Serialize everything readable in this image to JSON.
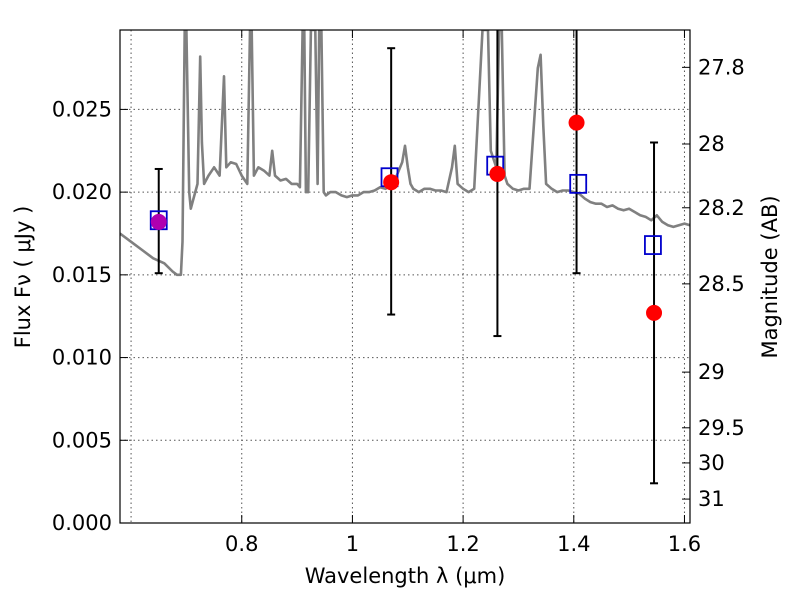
{
  "chart_data": {
    "type": "scatter",
    "title": "",
    "xlabel": "Wavelength  λ (μm)",
    "ylabel": "Flux  Fν  ( μJy )",
    "y2label": "Magnitude (AB)",
    "xlim": [
      0.58,
      1.61
    ],
    "ylim": [
      0.0,
      0.0298
    ],
    "grid": true,
    "x_ticks": [
      0.8,
      1.0,
      1.2,
      1.4,
      1.6
    ],
    "x_tick_labels": [
      "0.8",
      "1",
      "1.2",
      "1.4",
      "1.6"
    ],
    "y_ticks": [
      0.0,
      0.005,
      0.01,
      0.015,
      0.02,
      0.025
    ],
    "y_tick_labels": [
      "0.000",
      "0.005",
      "0.010",
      "0.015",
      "0.020",
      "0.025"
    ],
    "mag_ticks": [
      27.8,
      28,
      28.2,
      28.5,
      29,
      29.5,
      30,
      31
    ],
    "mag_tick_labels": [
      "27.8",
      "28",
      "28.2",
      "28.5",
      "29",
      "29.5",
      "30",
      "31"
    ],
    "colors": {
      "spectrum": "#808080",
      "observed": "#ff0000",
      "model": "#0000cc",
      "overlap": "#b000b0",
      "errorbar": "#000000"
    },
    "spectrum": {
      "x": [
        0.58,
        0.6,
        0.62,
        0.64,
        0.66,
        0.675,
        0.683,
        0.69,
        0.693,
        0.697,
        0.7,
        0.705,
        0.708,
        0.712,
        0.72,
        0.725,
        0.728,
        0.732,
        0.74,
        0.75,
        0.76,
        0.768,
        0.772,
        0.78,
        0.79,
        0.8,
        0.81,
        0.815,
        0.818,
        0.822,
        0.83,
        0.84,
        0.85,
        0.855,
        0.86,
        0.87,
        0.88,
        0.89,
        0.9,
        0.905,
        0.91,
        0.913,
        0.916,
        0.92,
        0.925,
        0.928,
        0.93,
        0.933,
        0.937,
        0.94,
        0.944,
        0.948,
        0.952,
        0.96,
        0.97,
        0.98,
        0.99,
        1.0,
        1.01,
        1.02,
        1.03,
        1.04,
        1.05,
        1.06,
        1.07,
        1.08,
        1.09,
        1.095,
        1.1,
        1.105,
        1.11,
        1.12,
        1.13,
        1.14,
        1.15,
        1.16,
        1.17,
        1.18,
        1.185,
        1.19,
        1.2,
        1.21,
        1.22,
        1.235,
        1.24,
        1.245,
        1.25,
        1.255,
        1.26,
        1.265,
        1.27,
        1.275,
        1.28,
        1.29,
        1.3,
        1.31,
        1.32,
        1.335,
        1.34,
        1.345,
        1.35,
        1.36,
        1.37,
        1.38,
        1.39,
        1.4,
        1.41,
        1.42,
        1.43,
        1.44,
        1.45,
        1.46,
        1.47,
        1.48,
        1.49,
        1.5,
        1.51,
        1.52,
        1.53,
        1.54,
        1.55,
        1.56,
        1.57,
        1.58,
        1.59,
        1.6,
        1.61
      ],
      "y": [
        0.0175,
        0.017,
        0.0165,
        0.016,
        0.0157,
        0.0152,
        0.015,
        0.015,
        0.017,
        0.0298,
        0.0298,
        0.02,
        0.019,
        0.0195,
        0.0205,
        0.0282,
        0.023,
        0.0205,
        0.021,
        0.0215,
        0.021,
        0.027,
        0.0215,
        0.0218,
        0.0217,
        0.021,
        0.0205,
        0.0298,
        0.0298,
        0.021,
        0.0215,
        0.0213,
        0.021,
        0.0225,
        0.021,
        0.0207,
        0.0208,
        0.0205,
        0.0205,
        0.0203,
        0.0298,
        0.0298,
        0.02,
        0.02,
        0.0298,
        0.0298,
        0.0298,
        0.0298,
        0.0205,
        0.0298,
        0.0298,
        0.02,
        0.0198,
        0.02,
        0.02,
        0.0198,
        0.0197,
        0.0198,
        0.0198,
        0.02,
        0.02,
        0.0201,
        0.0203,
        0.0202,
        0.0206,
        0.021,
        0.0218,
        0.0228,
        0.0215,
        0.0205,
        0.0202,
        0.02,
        0.0202,
        0.0202,
        0.0201,
        0.0201,
        0.02,
        0.0215,
        0.0228,
        0.0205,
        0.0202,
        0.02,
        0.0202,
        0.0298,
        0.0298,
        0.0298,
        0.0225,
        0.022,
        0.0215,
        0.0298,
        0.0298,
        0.021,
        0.0205,
        0.0202,
        0.0201,
        0.0202,
        0.0202,
        0.0275,
        0.0283,
        0.024,
        0.0205,
        0.0202,
        0.02,
        0.0201,
        0.0201,
        0.02,
        0.0199,
        0.0196,
        0.0194,
        0.0193,
        0.0193,
        0.0191,
        0.0192,
        0.019,
        0.0189,
        0.019,
        0.0188,
        0.0186,
        0.0185,
        0.0183,
        0.0186,
        0.0182,
        0.018,
        0.0179,
        0.018,
        0.0181,
        0.018
      ]
    },
    "observed": [
      {
        "x": 0.65,
        "y": 0.0182,
        "yerr_low": 0.0151,
        "yerr_high": 0.0214
      },
      {
        "x": 1.07,
        "y": 0.0206,
        "yerr_low": 0.0126,
        "yerr_high": 0.0287
      },
      {
        "x": 1.262,
        "y": 0.0211,
        "yerr_low": 0.0113,
        "yerr_high": 0.0298
      },
      {
        "x": 1.405,
        "y": 0.0242,
        "yerr_low": 0.0151,
        "yerr_high": 0.0298
      },
      {
        "x": 1.545,
        "y": 0.0127,
        "yerr_low": 0.0024,
        "yerr_high": 0.023
      }
    ],
    "model": [
      {
        "x": 0.65,
        "y": 0.0183
      },
      {
        "x": 1.067,
        "y": 0.0209
      },
      {
        "x": 1.258,
        "y": 0.0216
      },
      {
        "x": 1.408,
        "y": 0.0205
      },
      {
        "x": 1.543,
        "y": 0.0168
      }
    ]
  }
}
